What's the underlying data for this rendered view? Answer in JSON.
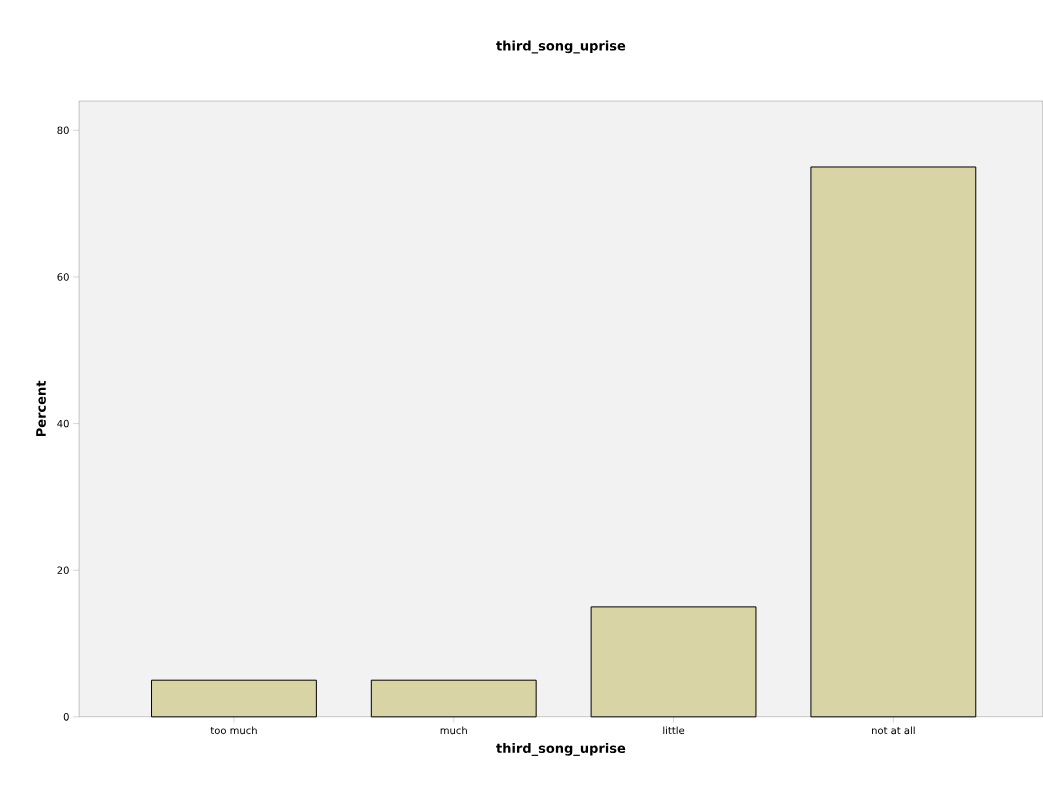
{
  "chart_data": {
    "type": "bar",
    "title": "third_song_uprise",
    "xlabel": "third_song_uprise",
    "ylabel": "Percent",
    "categories": [
      "too much",
      "much",
      "little",
      "not at all"
    ],
    "values": [
      5,
      5,
      15,
      75
    ],
    "color": "#d9d4a5",
    "ylim": [
      0,
      84
    ],
    "yticks": [
      0,
      20,
      40,
      60,
      80
    ],
    "grid": false
  }
}
